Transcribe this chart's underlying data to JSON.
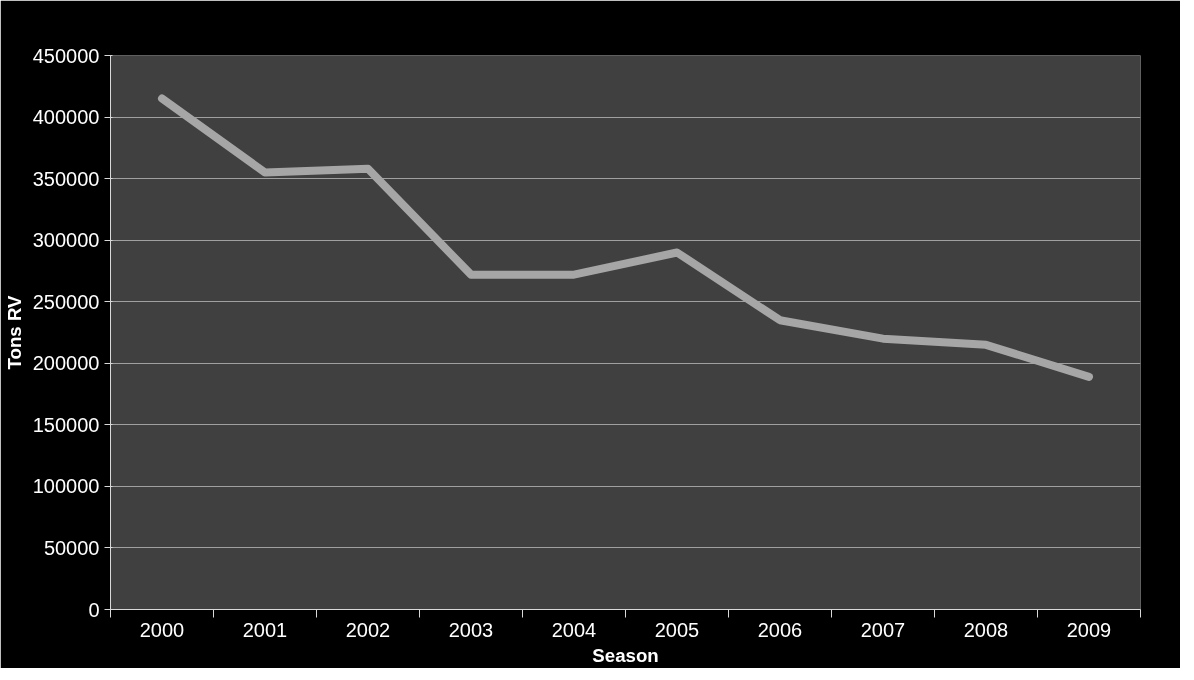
{
  "chart_data": {
    "type": "line",
    "xlabel": "Season",
    "ylabel": "Tons RV",
    "categories": [
      "2000",
      "2001",
      "2002",
      "2003",
      "2004",
      "2005",
      "2006",
      "2007",
      "2008",
      "2009"
    ],
    "series": [
      {
        "color": "#a6a6a6",
        "values": [
          415000,
          355000,
          358000,
          272000,
          272000,
          290000,
          235000,
          220000,
          215000,
          189000
        ]
      }
    ],
    "ylim": [
      0,
      450000
    ],
    "yticks": [
      0,
      50000,
      100000,
      150000,
      200000,
      250000,
      300000,
      350000,
      400000,
      450000
    ],
    "grid": "y",
    "marker": "none",
    "line_style": "solid"
  }
}
